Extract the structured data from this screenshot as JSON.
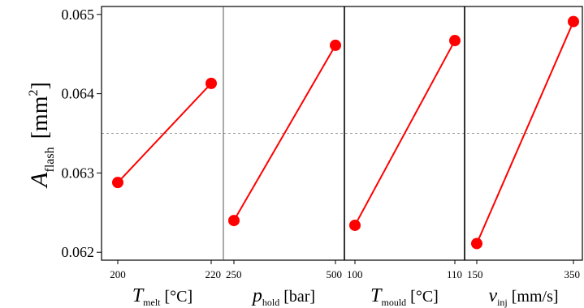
{
  "chart_data": {
    "type": "line",
    "title": "",
    "ylabel": {
      "symbol": "A",
      "subscript": "flash",
      "unit_open": "[mm",
      "unit_sup": "2",
      "unit_close": "]"
    },
    "ylim": [
      0.0619,
      0.0651
    ],
    "yticks": [
      0.062,
      0.063,
      0.064,
      0.065
    ],
    "ytick_labels": [
      "0.062",
      "0.063",
      "0.064",
      "0.065"
    ],
    "reference_line": {
      "y": 0.0635,
      "style": "dashed",
      "color": "#999999"
    },
    "grid": false,
    "colors": {
      "line": "#ff0000",
      "marker": "#ff0000",
      "frame": "#000000"
    },
    "panels": [
      {
        "xlabel": {
          "symbol": "T",
          "subscript": "melt",
          "unit": "[°C]"
        },
        "categories": [
          "200",
          "220"
        ],
        "values": [
          0.06288,
          0.06413
        ]
      },
      {
        "xlabel": {
          "symbol": "p",
          "subscript": "hold",
          "unit": "[bar]"
        },
        "categories": [
          "250",
          "500"
        ],
        "values": [
          0.0624,
          0.06461
        ]
      },
      {
        "xlabel": {
          "symbol": "T",
          "subscript": "mould",
          "unit": "[°C]"
        },
        "categories": [
          "100",
          "110"
        ],
        "values": [
          0.06234,
          0.06467
        ]
      },
      {
        "xlabel": {
          "symbol": "v",
          "subscript": "inj",
          "unit": "[mm/s]"
        },
        "categories": [
          "150",
          "350"
        ],
        "values": [
          0.06211,
          0.06491
        ]
      }
    ]
  }
}
